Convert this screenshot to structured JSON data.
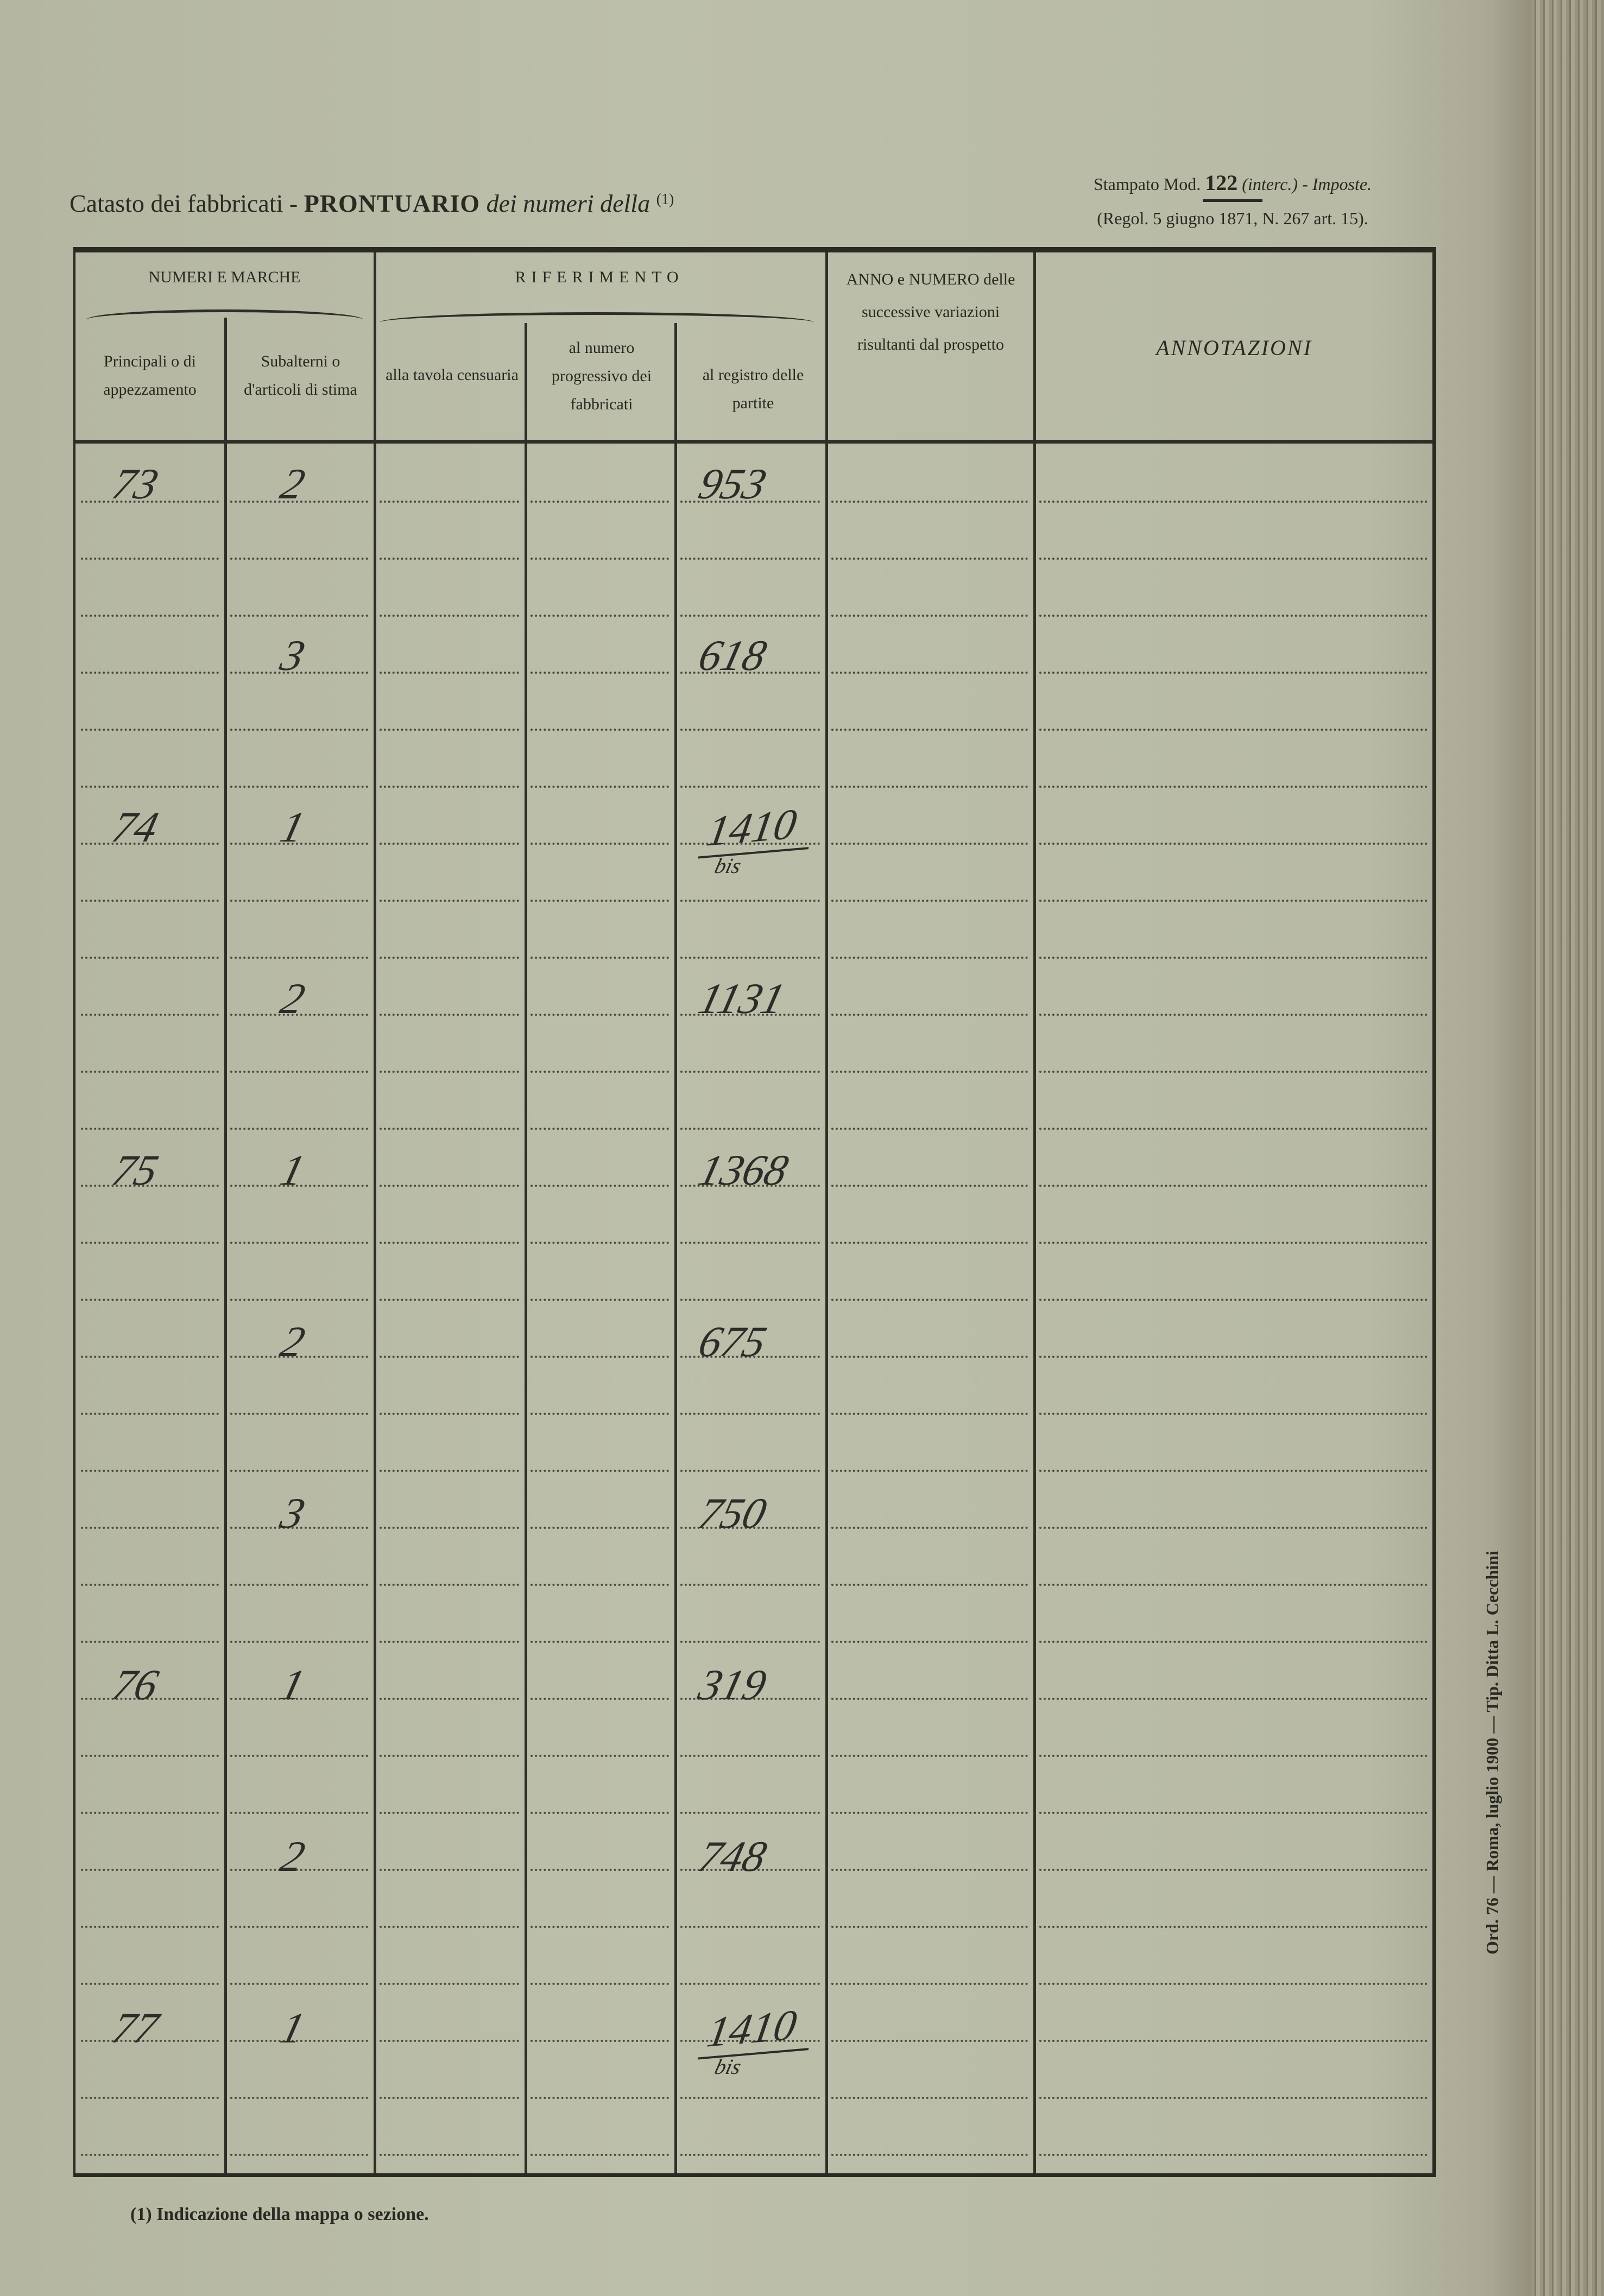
{
  "header": {
    "title_prefix": "Catasto dei fabbricati -",
    "title_bold": "PRONTUARIO",
    "title_italic": "dei numeri della",
    "title_note": "(1)",
    "stamp_line1_a": "Stampato Mod.",
    "stamp_line1_num": "122",
    "stamp_line1_b": "(interc.) - Imposte.",
    "stamp_line2": "(Regol. 5 giugno 1871, N. 267 art. 15)."
  },
  "columns": {
    "group_numeri": "NUMERI E MARCHE",
    "group_riferimento": "RIFERIMENTO",
    "principali": "Principali o di appezzamento",
    "subalterni": "Subalterni o d'articoli di stima",
    "tavola": "alla tavola censuaria",
    "numero": "al numero progressivo dei fabbricati",
    "registro": "al registro delle partite",
    "anno": "ANNO e NUMERO delle successive variazioni risultanti dal prospetto",
    "annotazioni": "ANNOTAZIONI"
  },
  "entries": [
    {
      "principale": "73",
      "subalterno": "2",
      "registro": "953",
      "note": ""
    },
    {
      "principale": "",
      "subalterno": "3",
      "registro": "618",
      "note": ""
    },
    {
      "principale": "74",
      "subalterno": "1",
      "registro": "1410",
      "note": "bis"
    },
    {
      "principale": "",
      "subalterno": "2",
      "registro": "1131",
      "note": ""
    },
    {
      "principale": "75",
      "subalterno": "1",
      "registro": "1368",
      "note": ""
    },
    {
      "principale": "",
      "subalterno": "2",
      "registro": "675",
      "note": ""
    },
    {
      "principale": "",
      "subalterno": "3",
      "registro": "750",
      "note": ""
    },
    {
      "principale": "76",
      "subalterno": "1",
      "registro": "319",
      "note": ""
    },
    {
      "principale": "",
      "subalterno": "2",
      "registro": "748",
      "note": ""
    },
    {
      "principale": "77",
      "subalterno": "1",
      "registro": "1410",
      "note": "bis"
    }
  ],
  "footnote": "(1) Indicazione della mappa o sezione.",
  "printer": "Ord. 76 — Roma, luglio 1900 — Tip. Ditta L. Cecchini"
}
